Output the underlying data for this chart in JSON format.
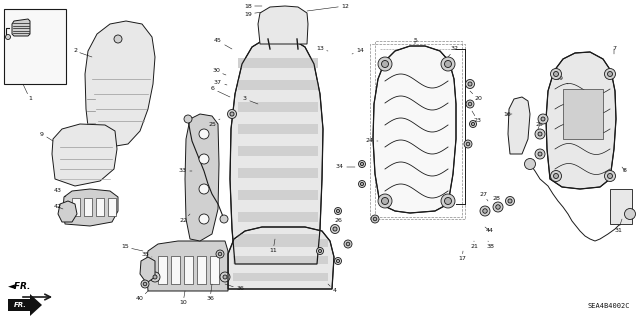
{
  "bg_color": "#ffffff",
  "line_color": "#1a1a1a",
  "text_color": "#111111",
  "diagram_code": "SEA4B4002C",
  "fig_width": 6.4,
  "fig_height": 3.19,
  "dpi": 100,
  "fill_light": "#e8e8e8",
  "fill_medium": "#d0d0d0",
  "fill_dark": "#b0b0b0",
  "fill_white": "#f8f8f8"
}
